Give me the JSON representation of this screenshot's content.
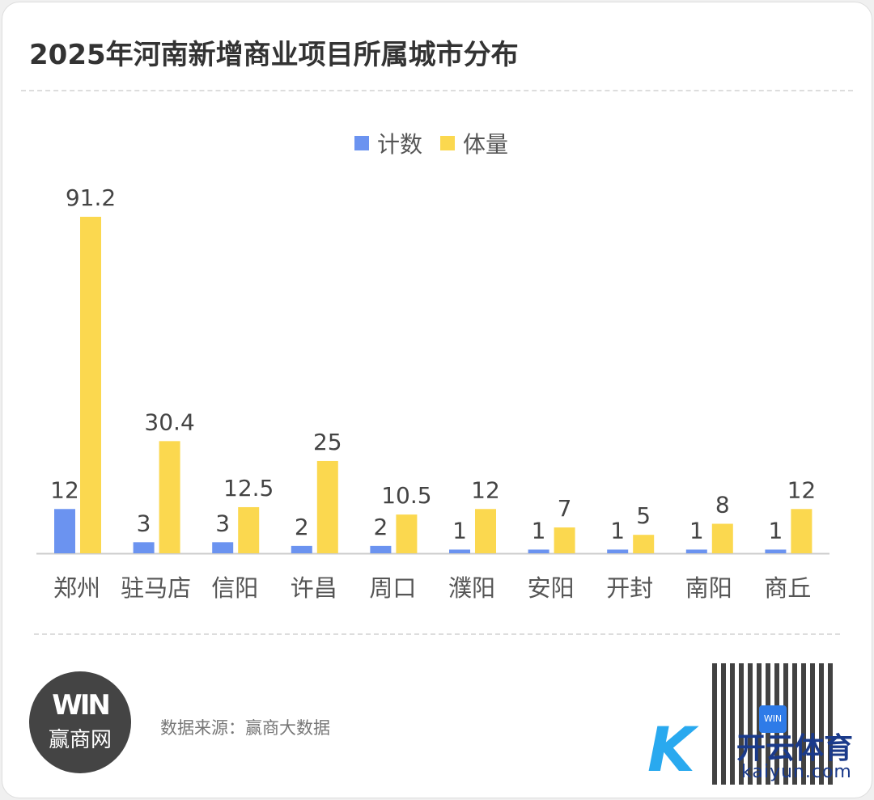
{
  "title": "2025年河南新增商业项目所属城市分布",
  "source": "数据来源：赢商大数据",
  "logo": {
    "mark": "WIN",
    "name": "赢商网"
  },
  "qr_center": "WIN",
  "watermark": {
    "brand": "开云体育",
    "url": "kaiyun.com"
  },
  "chart_data": {
    "type": "bar",
    "title": "2025年河南新增商业项目所属城市分布",
    "categories": [
      "郑州",
      "驻马店",
      "信阳",
      "许昌",
      "周口",
      "濮阳",
      "安阳",
      "开封",
      "南阳",
      "商丘"
    ],
    "series": [
      {
        "name": "计数",
        "color": "#6b93f0",
        "values": [
          12,
          3,
          3,
          2,
          2,
          1,
          1,
          1,
          1,
          1
        ],
        "labels": [
          "12",
          "3",
          "3",
          "2",
          "2",
          "1",
          "1",
          "1",
          "1",
          "1"
        ]
      },
      {
        "name": "体量",
        "color": "#fbd84f",
        "values": [
          91.2,
          30.4,
          12.5,
          25,
          10.5,
          12,
          7,
          5,
          8,
          12
        ],
        "labels": [
          "91.2",
          "30.4",
          "12.5",
          "25",
          "10.5",
          "12",
          "7",
          "5",
          "8",
          "12"
        ]
      }
    ],
    "legend": "top-center",
    "grid": false,
    "ylim": [
      0,
      91.2
    ]
  }
}
